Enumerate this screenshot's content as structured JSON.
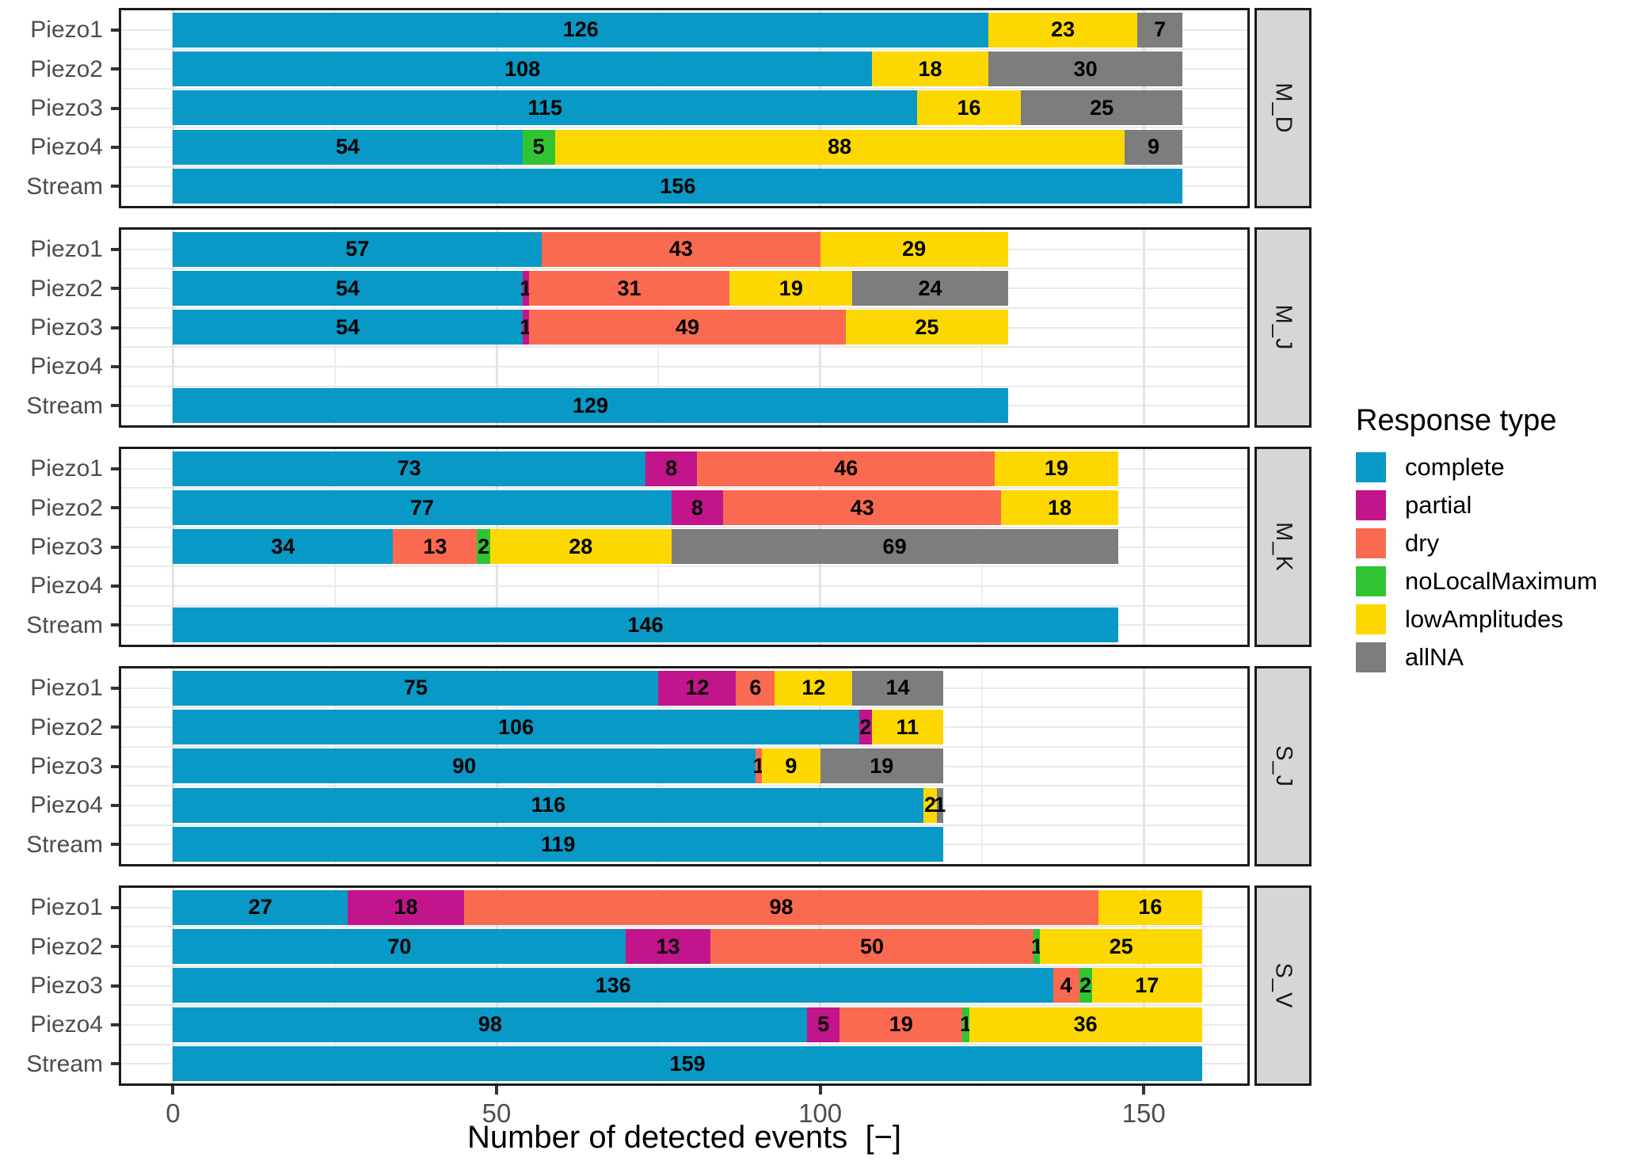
{
  "figure": {
    "xlabel": "Number of detected events  [−]",
    "legend_title": "Response type"
  },
  "chart_data": {
    "type": "bar",
    "orientation": "horizontal",
    "stacked": true,
    "title": "",
    "xlabel": "Number of detected events  [−]",
    "ylabel": "",
    "grid": true,
    "x_ticks": [
      0,
      50,
      100,
      150
    ],
    "x_minor_ticks": [
      25,
      75,
      125
    ],
    "x_domain": [
      -8,
      166
    ],
    "legend": {
      "title": "Response type",
      "position": "right",
      "items": [
        {
          "label": "complete",
          "color": "#0999C6"
        },
        {
          "label": "partial",
          "color": "#C2158B"
        },
        {
          "label": "dry",
          "color": "#FA6A51"
        },
        {
          "label": "noLocalMaximum",
          "color": "#30C433"
        },
        {
          "label": "lowAmplitudes",
          "color": "#FDD800"
        },
        {
          "label": "allNA",
          "color": "#7D7D7D"
        }
      ]
    },
    "palette": {
      "complete": "#0999C6",
      "partial": "#C2158B",
      "dry": "#FA6A51",
      "noLocalMaximum": "#30C433",
      "lowAmplitudes": "#FDD800",
      "allNA": "#7D7D7D"
    },
    "categories": [
      "Piezo1",
      "Piezo2",
      "Piezo3",
      "Piezo4",
      "Stream"
    ],
    "facets": [
      {
        "label": "M_D",
        "rows": [
          {
            "category": "Piezo1",
            "segments": [
              {
                "type": "complete",
                "value": 126
              },
              {
                "type": "lowAmplitudes",
                "value": 23
              },
              {
                "type": "allNA",
                "value": 7
              }
            ]
          },
          {
            "category": "Piezo2",
            "segments": [
              {
                "type": "complete",
                "value": 108
              },
              {
                "type": "lowAmplitudes",
                "value": 18
              },
              {
                "type": "allNA",
                "value": 30
              }
            ]
          },
          {
            "category": "Piezo3",
            "segments": [
              {
                "type": "complete",
                "value": 115
              },
              {
                "type": "lowAmplitudes",
                "value": 16
              },
              {
                "type": "allNA",
                "value": 25
              }
            ]
          },
          {
            "category": "Piezo4",
            "segments": [
              {
                "type": "complete",
                "value": 54
              },
              {
                "type": "noLocalMaximum",
                "value": 5
              },
              {
                "type": "lowAmplitudes",
                "value": 88
              },
              {
                "type": "allNA",
                "value": 9
              }
            ]
          },
          {
            "category": "Stream",
            "segments": [
              {
                "type": "complete",
                "value": 156
              }
            ]
          }
        ]
      },
      {
        "label": "M_J",
        "rows": [
          {
            "category": "Piezo1",
            "segments": [
              {
                "type": "complete",
                "value": 57
              },
              {
                "type": "dry",
                "value": 43
              },
              {
                "type": "lowAmplitudes",
                "value": 29
              }
            ]
          },
          {
            "category": "Piezo2",
            "segments": [
              {
                "type": "complete",
                "value": 54
              },
              {
                "type": "partial",
                "value": 1
              },
              {
                "type": "dry",
                "value": 31
              },
              {
                "type": "lowAmplitudes",
                "value": 19
              },
              {
                "type": "allNA",
                "value": 24
              }
            ]
          },
          {
            "category": "Piezo3",
            "segments": [
              {
                "type": "complete",
                "value": 54
              },
              {
                "type": "partial",
                "value": 1
              },
              {
                "type": "dry",
                "value": 49
              },
              {
                "type": "lowAmplitudes",
                "value": 25
              }
            ]
          },
          {
            "category": "Piezo4",
            "segments": []
          },
          {
            "category": "Stream",
            "segments": [
              {
                "type": "complete",
                "value": 129
              }
            ]
          }
        ]
      },
      {
        "label": "M_K",
        "rows": [
          {
            "category": "Piezo1",
            "segments": [
              {
                "type": "complete",
                "value": 73
              },
              {
                "type": "partial",
                "value": 8
              },
              {
                "type": "dry",
                "value": 46
              },
              {
                "type": "lowAmplitudes",
                "value": 19
              }
            ]
          },
          {
            "category": "Piezo2",
            "segments": [
              {
                "type": "complete",
                "value": 77
              },
              {
                "type": "partial",
                "value": 8
              },
              {
                "type": "dry",
                "value": 43
              },
              {
                "type": "lowAmplitudes",
                "value": 18
              }
            ]
          },
          {
            "category": "Piezo3",
            "segments": [
              {
                "type": "complete",
                "value": 34
              },
              {
                "type": "dry",
                "value": 13
              },
              {
                "type": "noLocalMaximum",
                "value": 2
              },
              {
                "type": "lowAmplitudes",
                "value": 28
              },
              {
                "type": "allNA",
                "value": 69
              }
            ]
          },
          {
            "category": "Piezo4",
            "segments": []
          },
          {
            "category": "Stream",
            "segments": [
              {
                "type": "complete",
                "value": 146
              }
            ]
          }
        ]
      },
      {
        "label": "S_J",
        "rows": [
          {
            "category": "Piezo1",
            "segments": [
              {
                "type": "complete",
                "value": 75
              },
              {
                "type": "partial",
                "value": 12
              },
              {
                "type": "dry",
                "value": 6
              },
              {
                "type": "lowAmplitudes",
                "value": 12
              },
              {
                "type": "allNA",
                "value": 14
              }
            ]
          },
          {
            "category": "Piezo2",
            "segments": [
              {
                "type": "complete",
                "value": 106
              },
              {
                "type": "partial",
                "value": 2
              },
              {
                "type": "lowAmplitudes",
                "value": 11
              }
            ]
          },
          {
            "category": "Piezo3",
            "segments": [
              {
                "type": "complete",
                "value": 90
              },
              {
                "type": "dry",
                "value": 1
              },
              {
                "type": "lowAmplitudes",
                "value": 9
              },
              {
                "type": "allNA",
                "value": 19
              }
            ]
          },
          {
            "category": "Piezo4",
            "segments": [
              {
                "type": "complete",
                "value": 116
              },
              {
                "type": "lowAmplitudes",
                "value": 2
              },
              {
                "type": "allNA",
                "value": 1
              }
            ]
          },
          {
            "category": "Stream",
            "segments": [
              {
                "type": "complete",
                "value": 119
              }
            ]
          }
        ]
      },
      {
        "label": "S_V",
        "rows": [
          {
            "category": "Piezo1",
            "segments": [
              {
                "type": "complete",
                "value": 27
              },
              {
                "type": "partial",
                "value": 18
              },
              {
                "type": "dry",
                "value": 98
              },
              {
                "type": "lowAmplitudes",
                "value": 16
              }
            ]
          },
          {
            "category": "Piezo2",
            "segments": [
              {
                "type": "complete",
                "value": 70
              },
              {
                "type": "partial",
                "value": 13
              },
              {
                "type": "dry",
                "value": 50
              },
              {
                "type": "noLocalMaximum",
                "value": 1
              },
              {
                "type": "lowAmplitudes",
                "value": 25
              }
            ]
          },
          {
            "category": "Piezo3",
            "segments": [
              {
                "type": "complete",
                "value": 136
              },
              {
                "type": "dry",
                "value": 4
              },
              {
                "type": "noLocalMaximum",
                "value": 2
              },
              {
                "type": "lowAmplitudes",
                "value": 17
              }
            ]
          },
          {
            "category": "Piezo4",
            "segments": [
              {
                "type": "complete",
                "value": 98
              },
              {
                "type": "partial",
                "value": 5
              },
              {
                "type": "dry",
                "value": 19
              },
              {
                "type": "noLocalMaximum",
                "value": 1
              },
              {
                "type": "lowAmplitudes",
                "value": 36
              }
            ]
          },
          {
            "category": "Stream",
            "segments": [
              {
                "type": "complete",
                "value": 159
              }
            ]
          }
        ]
      }
    ]
  }
}
